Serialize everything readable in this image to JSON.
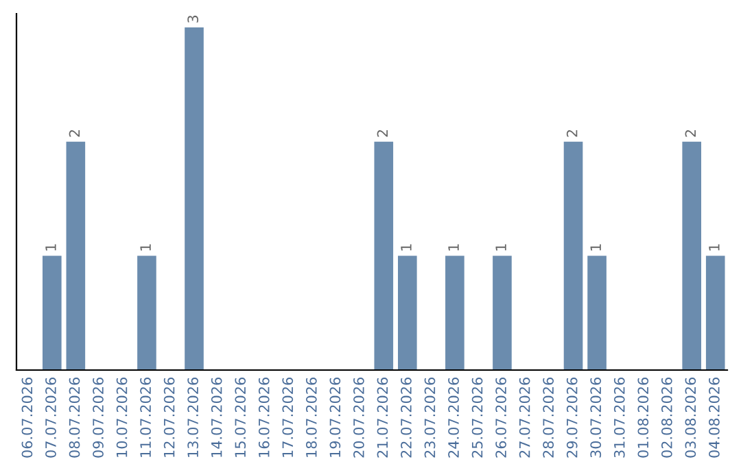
{
  "chart_data": {
    "type": "bar",
    "categories": [
      "06.07.2026",
      "07.07.2026",
      "08.07.2026",
      "09.07.2026",
      "10.07.2026",
      "11.07.2026",
      "12.07.2026",
      "13.07.2026",
      "14.07.2026",
      "15.07.2026",
      "16.07.2026",
      "17.07.2026",
      "18.07.2026",
      "19.07.2026",
      "20.07.2026",
      "21.07.2026",
      "22.07.2026",
      "23.07.2026",
      "24.07.2026",
      "25.07.2026",
      "26.07.2026",
      "27.07.2026",
      "28.07.2026",
      "29.07.2026",
      "30.07.2026",
      "31.07.2026",
      "01.08.2026",
      "02.08.2026",
      "03.08.2026",
      "04.08.2026"
    ],
    "values": [
      0,
      1,
      2,
      0,
      0,
      1,
      0,
      3,
      0,
      0,
      0,
      0,
      0,
      0,
      0,
      2,
      1,
      0,
      1,
      0,
      1,
      0,
      0,
      2,
      1,
      0,
      0,
      0,
      2,
      1
    ],
    "value_labels": [
      null,
      "1",
      "2",
      null,
      null,
      "1",
      null,
      "3",
      null,
      null,
      null,
      null,
      null,
      null,
      null,
      "2",
      "1",
      null,
      "1",
      null,
      "1",
      null,
      null,
      "2",
      "1",
      null,
      null,
      null,
      "2",
      "1"
    ],
    "color": "#6b8cae",
    "ylim": [
      0,
      3.12
    ],
    "tick_labels": "x",
    "grid": false,
    "legend": false
  }
}
